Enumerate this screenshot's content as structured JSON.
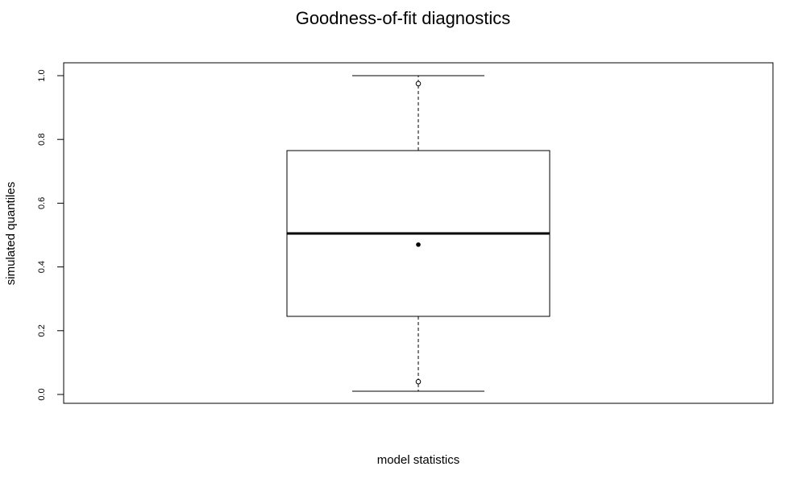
{
  "chart_data": {
    "type": "boxplot",
    "title": "Goodness-of-fit diagnostics",
    "xlabel": "model statistics",
    "ylabel": "simulated quantiles",
    "ylim": [
      0.0,
      1.0
    ],
    "yticks": [
      0.0,
      0.2,
      0.4,
      0.6,
      0.8,
      1.0
    ],
    "ytick_labels": [
      "0.0",
      "0.2",
      "0.4",
      "0.6",
      "0.8",
      "1.0"
    ],
    "grid": false,
    "box": {
      "whisker_low": 0.01,
      "q1": 0.245,
      "median": 0.505,
      "q3": 0.765,
      "whisker_high": 1.0,
      "mean": 0.47
    },
    "reference_points": [
      0.04,
      0.975
    ]
  }
}
